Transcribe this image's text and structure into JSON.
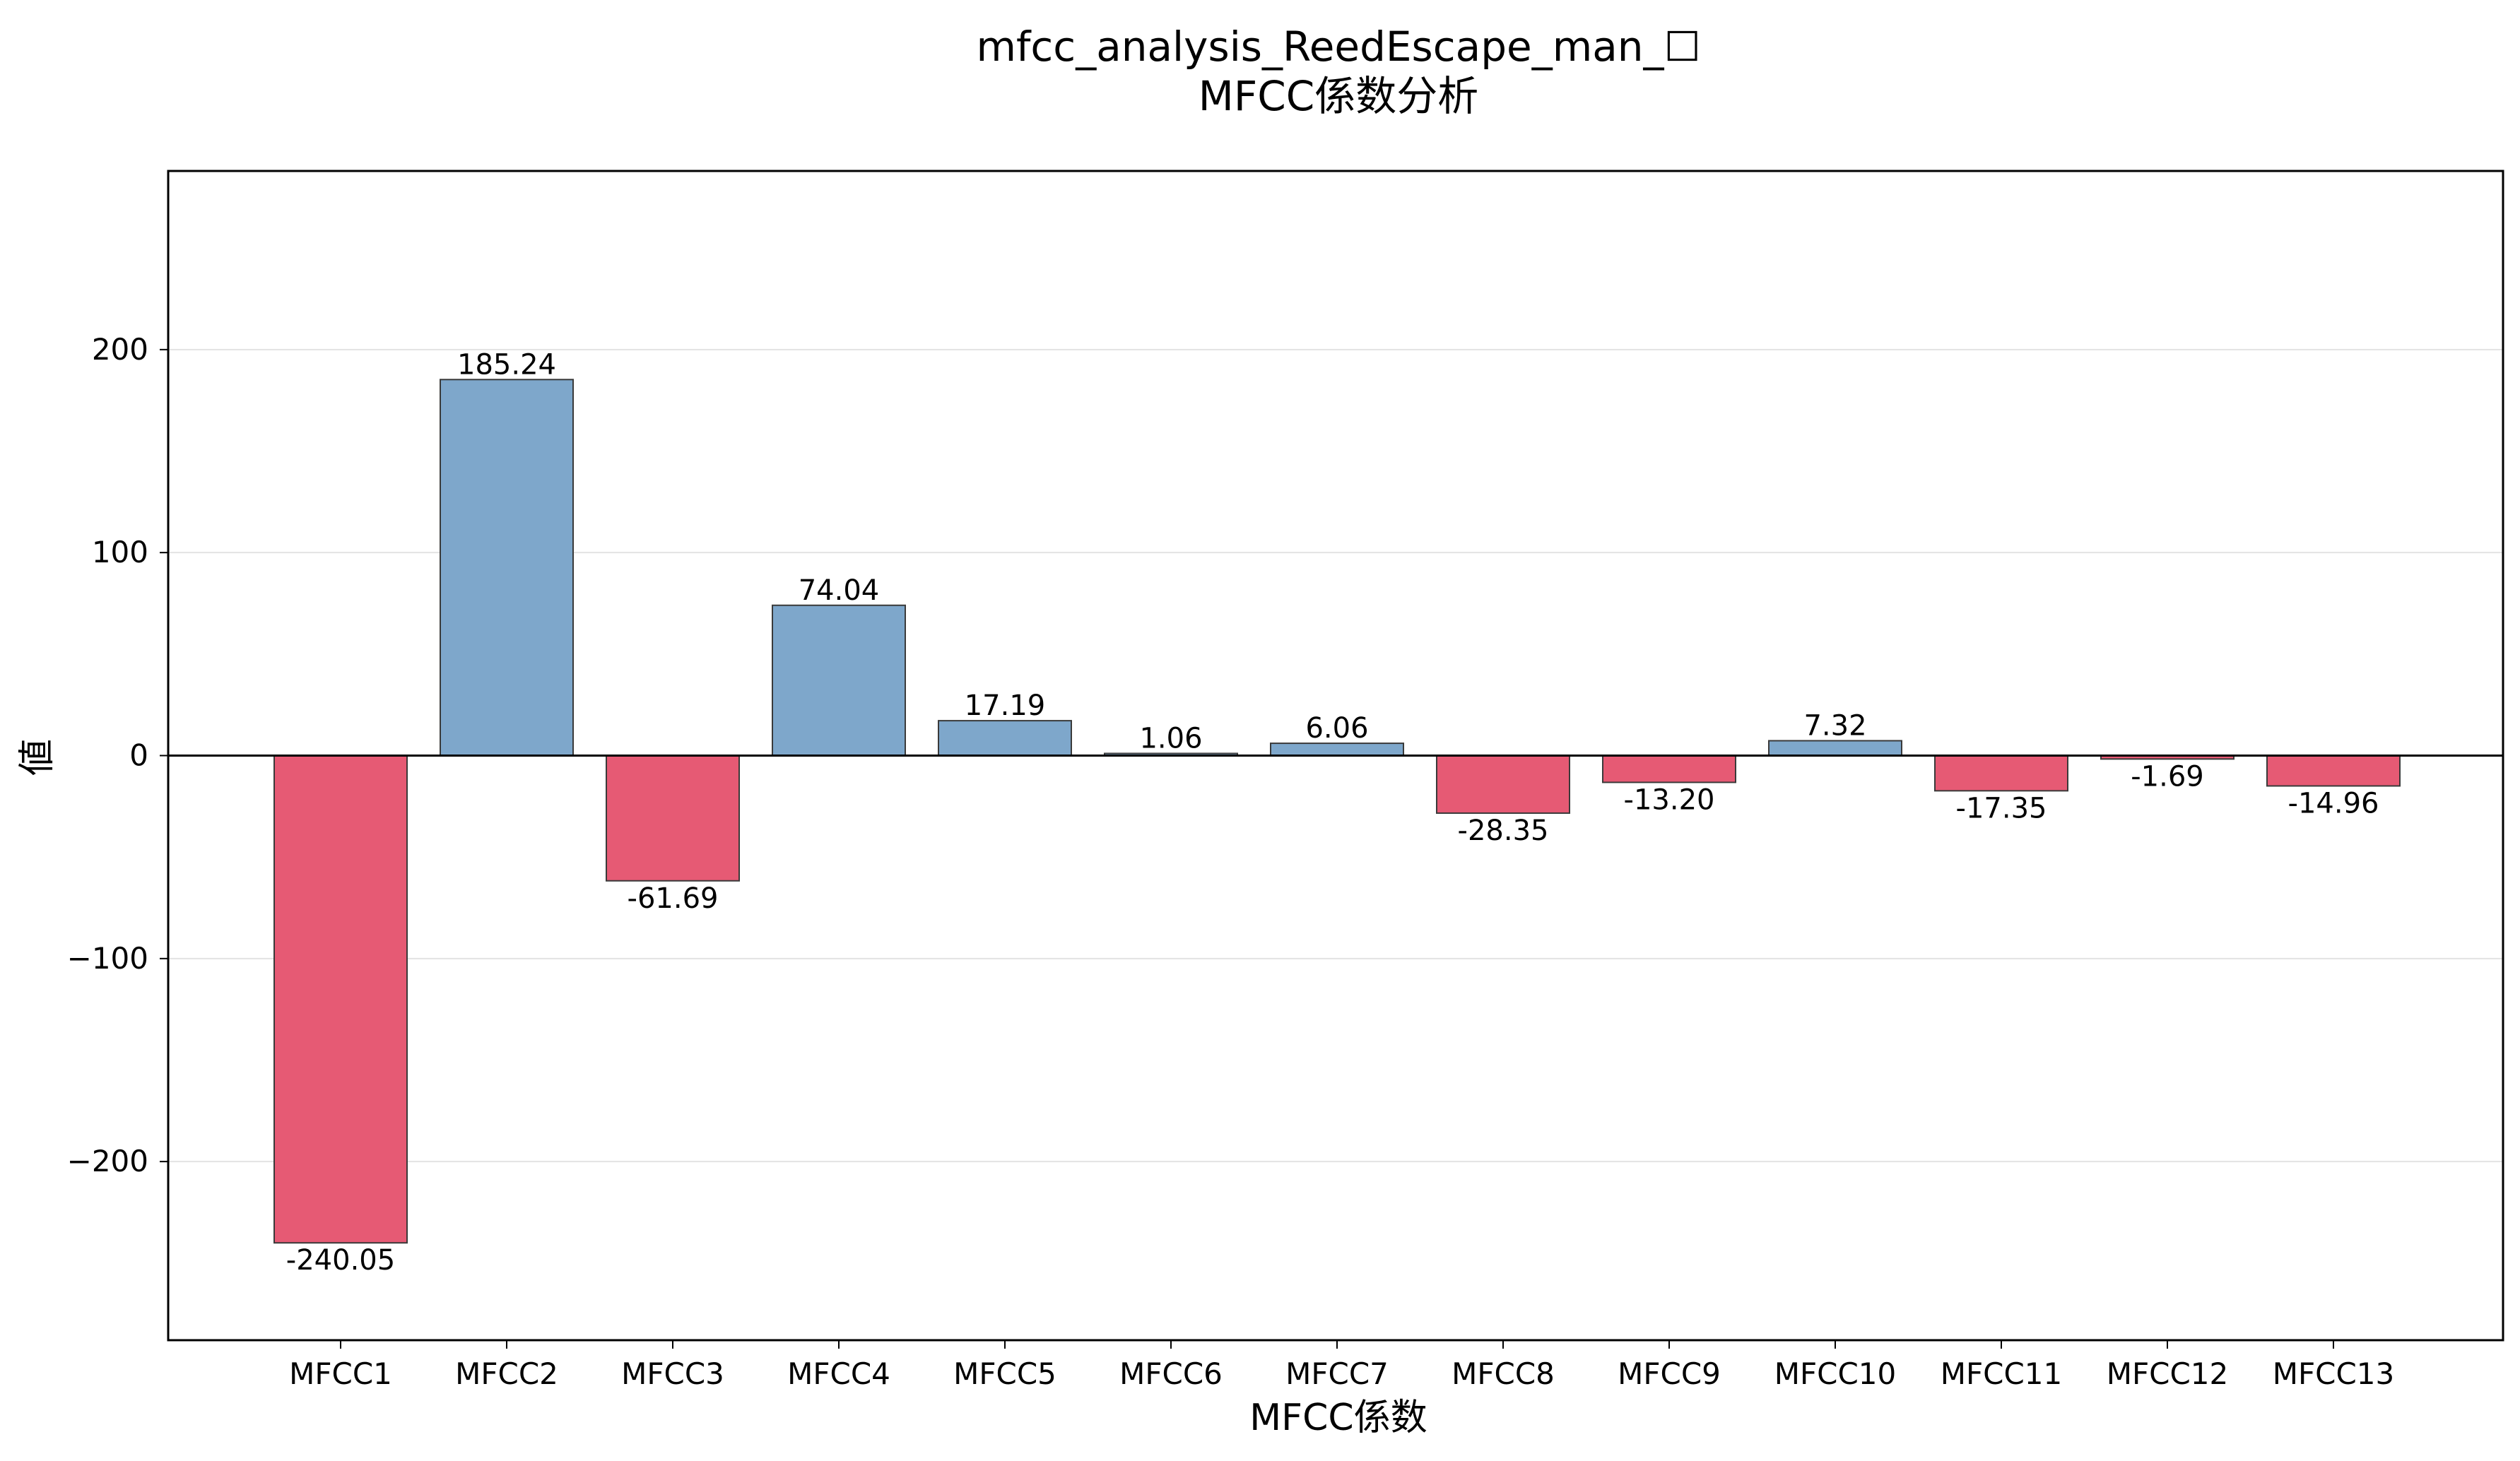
{
  "chart_data": {
    "type": "bar",
    "title": "mfcc_analysis_ReedEscape_man_☐",
    "subtitle": "MFCC係数分析",
    "xlabel": "MFCC係数",
    "ylabel": "値",
    "categories": [
      "MFCC1",
      "MFCC2",
      "MFCC3",
      "MFCC4",
      "MFCC5",
      "MFCC6",
      "MFCC7",
      "MFCC8",
      "MFCC9",
      "MFCC10",
      "MFCC11",
      "MFCC12",
      "MFCC13"
    ],
    "values": [
      -240.05,
      185.24,
      -61.69,
      74.04,
      17.19,
      1.06,
      6.06,
      -28.35,
      -13.2,
      7.32,
      -17.35,
      -1.69,
      -14.96
    ],
    "value_labels": [
      "-240.05",
      "185.24",
      "-61.69",
      "74.04",
      "17.19",
      "1.06",
      "6.06",
      "-28.35",
      "-13.20",
      "7.32",
      "-17.35",
      "-1.69",
      "-14.96"
    ],
    "ylim": [
      -288,
      288
    ],
    "yticks": [
      -200,
      -100,
      0,
      100,
      200
    ],
    "ytick_labels": [
      "−200",
      "−100",
      "0",
      "100",
      "200"
    ],
    "grid": "horizontal",
    "colors": {
      "positive": "#7ea7cb",
      "negative": "#e65a74",
      "edge": "#3a3a3a",
      "grid": "#e3e3e3"
    }
  }
}
